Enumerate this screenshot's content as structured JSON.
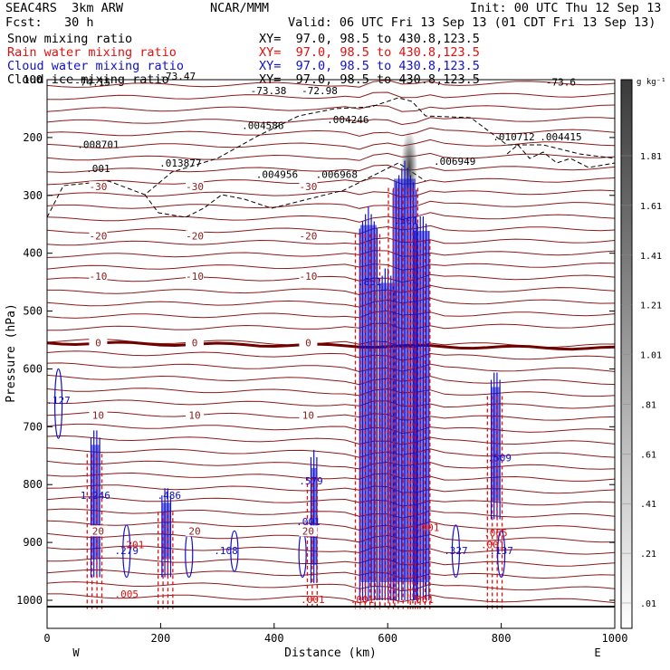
{
  "header": {
    "model": "SEAC4RS  3km ARW",
    "org": "NCAR/MMM",
    "init": "Init: 00 UTC Thu 12 Sep 13",
    "fcst": "Fcst:   30 h",
    "valid": "Valid: 06 UTC Fri 13 Sep 13 (01 CDT Fri 13 Sep 13)",
    "fields": [
      {
        "name": "Snow mixing ratio",
        "xy": "XY=  97.0, 98.5 to 430.8,123.5",
        "color": "#000000"
      },
      {
        "name": "Rain water mixing ratio",
        "xy": "XY=  97.0, 98.5 to 430.8,123.5",
        "color": "#e01010"
      },
      {
        "name": "Cloud water mixing ratio",
        "xy": "XY=  97.0, 98.5 to 430.8,123.5",
        "color": "#1010d0"
      },
      {
        "name": "Cloud ice mixing ratio",
        "xy": "XY=  97.0, 98.5 to 430.8,123.5",
        "color": "#000000"
      }
    ]
  },
  "chart_data": {
    "type": "contour",
    "xlabel": "Distance (km)",
    "ylabel": "Pressure (hPa)",
    "xlim": [
      0,
      1000
    ],
    "ylim": [
      1050,
      100
    ],
    "xticks": [
      "0",
      "200",
      "400",
      "600",
      "800",
      "1000"
    ],
    "yticks": [
      "100",
      "200",
      "300",
      "400",
      "500",
      "600",
      "700",
      "800",
      "900",
      "1000"
    ],
    "x_end_labels": {
      "left": "W",
      "right": "E"
    },
    "colorbar": {
      "unit": "g kg⁻¹",
      "labels": [
        "1.81",
        "1.61",
        "1.41",
        "1.21",
        "1.01",
        ".81",
        ".61",
        ".41",
        ".21",
        ".01"
      ]
    },
    "temperature_contours": [
      {
        "label": "-30",
        "p": 285
      },
      {
        "label": "-20",
        "p": 370
      },
      {
        "label": "-10",
        "p": 440
      },
      {
        "label": "0",
        "p": 555
      },
      {
        "label": "10",
        "p": 680
      },
      {
        "label": "20",
        "p": 880
      }
    ],
    "annotations_black": [
      {
        "text": "-74.15",
        "x": 80,
        "p": 110
      },
      {
        "text": "-73.47",
        "x": 230,
        "p": 100
      },
      {
        "text": "-73.38",
        "x": 390,
        "p": 125
      },
      {
        "text": "-72.98",
        "x": 480,
        "p": 125
      },
      {
        "text": "-73.6",
        "x": 905,
        "p": 110
      },
      {
        "text": ".004246",
        "x": 530,
        "p": 175
      },
      {
        "text": ".004586",
        "x": 380,
        "p": 185
      },
      {
        "text": ".008701",
        "x": 90,
        "p": 218
      },
      {
        "text": ".013877",
        "x": 235,
        "p": 250
      },
      {
        "text": ".001",
        "x": 90,
        "p": 260
      },
      {
        "text": ".004956",
        "x": 405,
        "p": 270
      },
      {
        "text": ".006968",
        "x": 510,
        "p": 270
      },
      {
        "text": ".006949",
        "x": 718,
        "p": 247
      },
      {
        "text": ".010712",
        "x": 822,
        "p": 205
      },
      {
        "text": ".004415",
        "x": 905,
        "p": 205
      }
    ],
    "annotations_blue": [
      {
        "text": ".127",
        "x": 20,
        "p": 660
      },
      {
        "text": "1.246",
        "x": 85,
        "p": 825
      },
      {
        "text": ".486",
        "x": 215,
        "p": 825
      },
      {
        "text": ".279",
        "x": 140,
        "p": 920
      },
      {
        "text": ".108",
        "x": 315,
        "p": 920
      },
      {
        "text": ".579",
        "x": 465,
        "p": 800
      },
      {
        "text": ".001",
        "x": 460,
        "p": 870
      },
      {
        "text": ".851",
        "x": 568,
        "p": 455
      },
      {
        "text": ".501",
        "x": 632,
        "p": 350
      },
      {
        "text": ".509",
        "x": 797,
        "p": 760
      },
      {
        "text": ".327",
        "x": 720,
        "p": 920
      },
      {
        "text": ".137",
        "x": 800,
        "p": 920
      }
    ],
    "annotations_red": [
      {
        "text": ".201",
        "x": 150,
        "p": 910
      },
      {
        "text": ".005",
        "x": 140,
        "p": 995
      },
      {
        "text": ".065",
        "x": 790,
        "p": 890
      },
      {
        "text": ".001",
        "x": 785,
        "p": 910
      },
      {
        "text": ".001",
        "x": 468,
        "p": 1005
      },
      {
        "text": ".001",
        "x": 555,
        "p": 1005
      },
      {
        "text": ".001",
        "x": 660,
        "p": 1005
      },
      {
        "text": ".001",
        "x": 670,
        "p": 880
      }
    ]
  }
}
